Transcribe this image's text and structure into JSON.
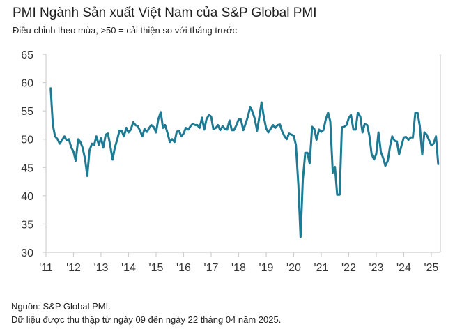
{
  "header": {
    "title": "PMI Ngành Sản xuất Việt Nam của S&P Global PMI",
    "subtitle": "Điều chỉnh theo mùa, >50 = cải thiện so với tháng trước"
  },
  "footer": {
    "source": "Nguồn: S&P Global PMI.",
    "note": "Dữ liệu được thu thập từ ngày 09 đến ngày 22 tháng 04 năm 2025."
  },
  "colors": {
    "line": "#1f7a93",
    "axis": "#cfcfcf",
    "text": "#333333"
  },
  "chart_data": {
    "type": "line",
    "ylim": [
      30,
      65
    ],
    "yticks": [
      30,
      35,
      40,
      45,
      50,
      55,
      60,
      65
    ],
    "xlim": [
      2011.0,
      2025.33
    ],
    "xticks": [
      {
        "value": 2011,
        "label": "'11"
      },
      {
        "value": 2012,
        "label": "'12"
      },
      {
        "value": 2013,
        "label": "'13"
      },
      {
        "value": 2014,
        "label": "'14"
      },
      {
        "value": 2015,
        "label": "'15"
      },
      {
        "value": 2016,
        "label": "'16"
      },
      {
        "value": 2017,
        "label": "'17"
      },
      {
        "value": 2018,
        "label": "'18"
      },
      {
        "value": 2019,
        "label": "'19"
      },
      {
        "value": 2020,
        "label": "'20"
      },
      {
        "value": 2021,
        "label": "'21"
      },
      {
        "value": 2022,
        "label": "'22"
      },
      {
        "value": 2023,
        "label": "'23"
      },
      {
        "value": 2024,
        "label": "'24"
      },
      {
        "value": 2025,
        "label": "'25"
      }
    ],
    "series": [
      {
        "points": [
          [
            2011.17,
            59.0
          ],
          [
            2011.25,
            52.5
          ],
          [
            2011.33,
            50.5
          ],
          [
            2011.42,
            50.0
          ],
          [
            2011.5,
            49.2
          ],
          [
            2011.58,
            49.8
          ],
          [
            2011.67,
            50.5
          ],
          [
            2011.75,
            49.8
          ],
          [
            2011.83,
            50.0
          ],
          [
            2011.92,
            48.5
          ],
          [
            2012.0,
            47.8
          ],
          [
            2012.08,
            46.2
          ],
          [
            2012.17,
            50.0
          ],
          [
            2012.25,
            49.5
          ],
          [
            2012.33,
            48.5
          ],
          [
            2012.42,
            46.5
          ],
          [
            2012.5,
            43.5
          ],
          [
            2012.58,
            48.0
          ],
          [
            2012.67,
            49.2
          ],
          [
            2012.75,
            49.0
          ],
          [
            2012.83,
            50.5
          ],
          [
            2012.92,
            49.0
          ],
          [
            2013.0,
            50.2
          ],
          [
            2013.08,
            48.5
          ],
          [
            2013.17,
            50.8
          ],
          [
            2013.25,
            51.0
          ],
          [
            2013.33,
            49.0
          ],
          [
            2013.42,
            46.4
          ],
          [
            2013.5,
            48.5
          ],
          [
            2013.58,
            49.8
          ],
          [
            2013.67,
            51.5
          ],
          [
            2013.75,
            51.5
          ],
          [
            2013.83,
            50.5
          ],
          [
            2013.92,
            52.0
          ],
          [
            2014.0,
            51.2
          ],
          [
            2014.08,
            51.7
          ],
          [
            2014.17,
            53.0
          ],
          [
            2014.25,
            52.5
          ],
          [
            2014.33,
            52.3
          ],
          [
            2014.42,
            51.5
          ],
          [
            2014.5,
            50.5
          ],
          [
            2014.58,
            51.8
          ],
          [
            2014.67,
            51.3
          ],
          [
            2014.75,
            52.0
          ],
          [
            2014.83,
            52.5
          ],
          [
            2014.92,
            52.1
          ],
          [
            2015.0,
            51.2
          ],
          [
            2015.08,
            53.5
          ],
          [
            2015.17,
            54.8
          ],
          [
            2015.25,
            52.0
          ],
          [
            2015.33,
            52.5
          ],
          [
            2015.42,
            51.0
          ],
          [
            2015.5,
            49.5
          ],
          [
            2015.58,
            50.0
          ],
          [
            2015.67,
            49.5
          ],
          [
            2015.75,
            51.3
          ],
          [
            2015.83,
            51.5
          ],
          [
            2015.92,
            50.5
          ],
          [
            2016.0,
            51.0
          ],
          [
            2016.08,
            52.0
          ],
          [
            2016.17,
            51.7
          ],
          [
            2016.25,
            52.3
          ],
          [
            2016.33,
            52.7
          ],
          [
            2016.42,
            52.5
          ],
          [
            2016.5,
            52.5
          ],
          [
            2016.58,
            52.0
          ],
          [
            2016.67,
            53.8
          ],
          [
            2016.75,
            51.7
          ],
          [
            2016.83,
            53.5
          ],
          [
            2016.92,
            54.3
          ],
          [
            2017.0,
            54.0
          ],
          [
            2017.08,
            51.8
          ],
          [
            2017.17,
            52.0
          ],
          [
            2017.25,
            52.5
          ],
          [
            2017.33,
            51.6
          ],
          [
            2017.42,
            52.3
          ],
          [
            2017.5,
            51.8
          ],
          [
            2017.58,
            51.7
          ],
          [
            2017.67,
            53.3
          ],
          [
            2017.75,
            51.6
          ],
          [
            2017.83,
            51.6
          ],
          [
            2017.92,
            52.5
          ],
          [
            2018.0,
            53.5
          ],
          [
            2018.08,
            53.5
          ],
          [
            2018.17,
            51.6
          ],
          [
            2018.25,
            52.7
          ],
          [
            2018.33,
            53.9
          ],
          [
            2018.42,
            55.7
          ],
          [
            2018.5,
            54.9
          ],
          [
            2018.58,
            53.7
          ],
          [
            2018.67,
            51.5
          ],
          [
            2018.75,
            53.9
          ],
          [
            2018.83,
            56.5
          ],
          [
            2018.92,
            53.8
          ],
          [
            2019.0,
            51.9
          ],
          [
            2019.08,
            51.2
          ],
          [
            2019.17,
            51.9
          ],
          [
            2019.25,
            52.5
          ],
          [
            2019.33,
            52.0
          ],
          [
            2019.42,
            52.5
          ],
          [
            2019.5,
            52.6
          ],
          [
            2019.58,
            51.4
          ],
          [
            2019.67,
            50.5
          ],
          [
            2019.75,
            50.0
          ],
          [
            2019.83,
            51.0
          ],
          [
            2019.92,
            50.8
          ],
          [
            2020.0,
            50.6
          ],
          [
            2020.08,
            49.0
          ],
          [
            2020.17,
            41.9
          ],
          [
            2020.25,
            32.7
          ],
          [
            2020.33,
            42.7
          ],
          [
            2020.42,
            47.6
          ],
          [
            2020.5,
            47.6
          ],
          [
            2020.58,
            45.7
          ],
          [
            2020.67,
            52.2
          ],
          [
            2020.75,
            51.8
          ],
          [
            2020.83,
            49.9
          ],
          [
            2020.92,
            51.7
          ],
          [
            2021.0,
            51.3
          ],
          [
            2021.08,
            51.6
          ],
          [
            2021.17,
            53.6
          ],
          [
            2021.25,
            54.7
          ],
          [
            2021.33,
            53.1
          ],
          [
            2021.42,
            44.1
          ],
          [
            2021.5,
            45.1
          ],
          [
            2021.58,
            40.2
          ],
          [
            2021.67,
            40.2
          ],
          [
            2021.75,
            52.1
          ],
          [
            2021.83,
            52.2
          ],
          [
            2021.92,
            52.5
          ],
          [
            2022.0,
            53.7
          ],
          [
            2022.08,
            54.3
          ],
          [
            2022.17,
            51.7
          ],
          [
            2022.25,
            51.7
          ],
          [
            2022.33,
            54.7
          ],
          [
            2022.42,
            54.0
          ],
          [
            2022.5,
            51.2
          ],
          [
            2022.58,
            52.7
          ],
          [
            2022.67,
            52.5
          ],
          [
            2022.75,
            50.6
          ],
          [
            2022.83,
            47.4
          ],
          [
            2022.92,
            46.4
          ],
          [
            2023.0,
            47.4
          ],
          [
            2023.08,
            51.2
          ],
          [
            2023.17,
            47.7
          ],
          [
            2023.25,
            46.7
          ],
          [
            2023.33,
            45.3
          ],
          [
            2023.42,
            46.2
          ],
          [
            2023.5,
            48.7
          ],
          [
            2023.58,
            50.5
          ],
          [
            2023.67,
            49.7
          ],
          [
            2023.75,
            49.6
          ],
          [
            2023.83,
            47.3
          ],
          [
            2023.92,
            48.9
          ],
          [
            2024.0,
            50.3
          ],
          [
            2024.08,
            50.4
          ],
          [
            2024.17,
            49.9
          ],
          [
            2024.25,
            50.3
          ],
          [
            2024.33,
            50.3
          ],
          [
            2024.42,
            54.7
          ],
          [
            2024.5,
            54.7
          ],
          [
            2024.58,
            52.4
          ],
          [
            2024.67,
            47.3
          ],
          [
            2024.75,
            51.2
          ],
          [
            2024.83,
            50.8
          ],
          [
            2024.92,
            49.8
          ],
          [
            2025.0,
            48.9
          ],
          [
            2025.08,
            49.2
          ],
          [
            2025.17,
            50.5
          ],
          [
            2025.25,
            45.6
          ]
        ]
      }
    ]
  }
}
